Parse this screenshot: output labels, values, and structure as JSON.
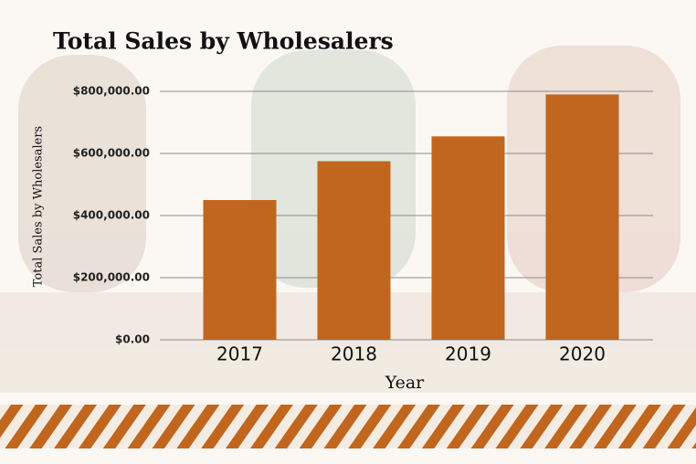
{
  "chart_data": {
    "type": "bar",
    "title": "Total Sales by Wholesalers",
    "x_label": "Year",
    "y_label": "Total Sales by Wholesalers",
    "categories": [
      "2017",
      "2018",
      "2019",
      "2020"
    ],
    "values": [
      450000,
      575000,
      655000,
      790000
    ],
    "color": "#c0661f",
    "ylim": [
      0,
      800000
    ],
    "yticks": [
      {
        "value": 0,
        "label": "$0.00"
      },
      {
        "value": 200000,
        "label": "$200,000.00"
      },
      {
        "value": 400000,
        "label": "$400,000.00"
      },
      {
        "value": 600000,
        "label": "$600,000.00"
      },
      {
        "value": 800000,
        "label": "$800,000.00"
      }
    ],
    "grid": true
  }
}
